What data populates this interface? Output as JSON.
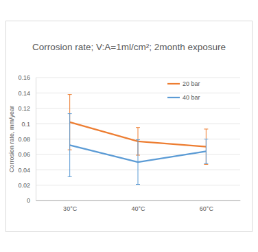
{
  "chart_data": {
    "type": "line",
    "title": "Corrosion rate; V:A=1ml/cm²; 2month exposure",
    "y_label": "Corrosion rate, mm/year",
    "categories": [
      "30°C",
      "40°C",
      "60°C"
    ],
    "series": [
      {
        "name": "20 bar",
        "color": "#ed7d31",
        "values": [
          0.102,
          0.077,
          0.07
        ],
        "errors": [
          0.036,
          0.018,
          0.023
        ]
      },
      {
        "name": "40 bar",
        "color": "#5b9bd5",
        "values": [
          0.072,
          0.05,
          0.064
        ],
        "errors": [
          0.041,
          0.029,
          0.016
        ]
      }
    ],
    "ylim": [
      0,
      0.16
    ],
    "yticks": [
      0,
      0.02,
      0.04,
      0.06,
      0.08,
      0.1,
      0.12,
      0.14,
      0.16
    ],
    "grid": true,
    "legend": "right"
  }
}
